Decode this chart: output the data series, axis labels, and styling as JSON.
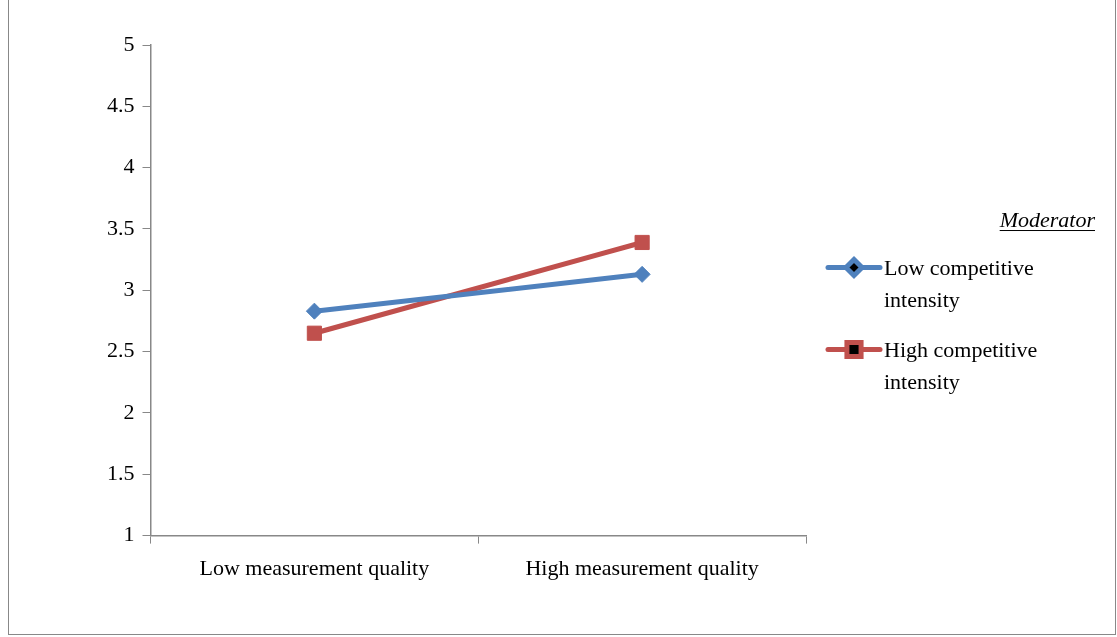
{
  "chart_data": {
    "type": "line",
    "categories": [
      "Low measurement quality",
      "High measurement quality"
    ],
    "series": [
      {
        "name": "Low competitive intensity",
        "color": "#4f81bd",
        "marker": "diamond",
        "values": [
          2.83,
          3.13
        ]
      },
      {
        "name": "High competitive intensity",
        "color": "#c0504d",
        "marker": "square",
        "values": [
          2.65,
          3.39
        ]
      }
    ],
    "ylim": [
      1,
      5
    ],
    "yticks": [
      1,
      1.5,
      2,
      2.5,
      3,
      3.5,
      4,
      4.5,
      5
    ],
    "grid": false,
    "legend": "right",
    "legend_title": "Moderator",
    "line_style": "solid"
  }
}
